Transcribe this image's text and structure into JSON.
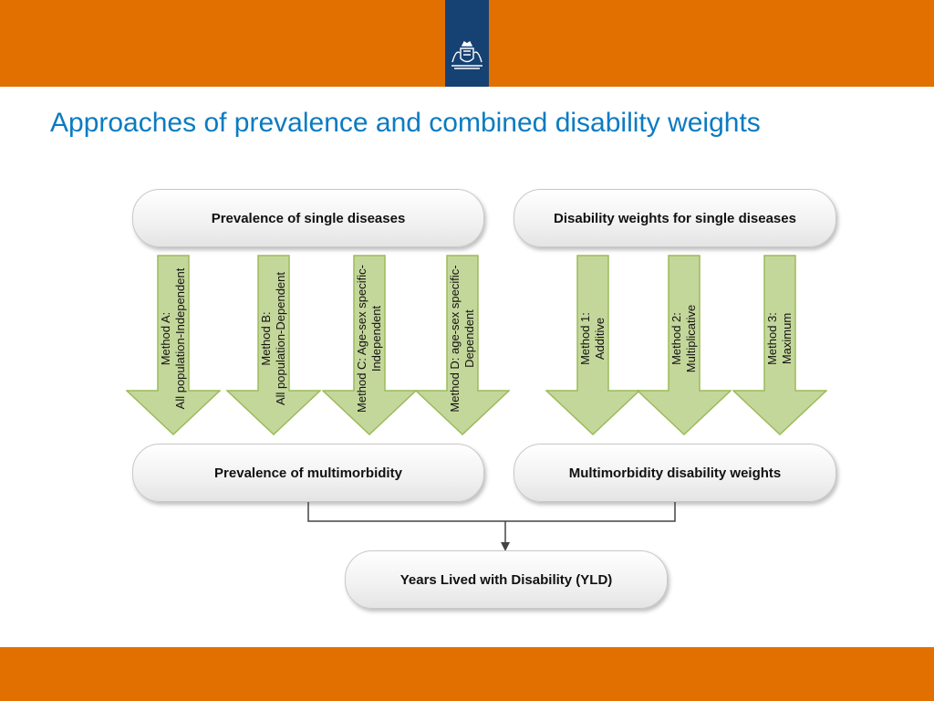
{
  "header": {
    "logo_icon": "coat-of-arms-icon",
    "colors": {
      "bar": "#e17000",
      "logo_block": "#154273",
      "title": "#0b7bc1",
      "arrow_fill": "#c4d79b",
      "arrow_stroke": "#9bbb59"
    }
  },
  "title": "Approaches of prevalence and combined disability weights",
  "boxes": {
    "prevalence_single": "Prevalence of single diseases",
    "weights_single": "Disability weights for single diseases",
    "prevalence_multi": "Prevalence of multimorbidity",
    "weights_multi": "Multimorbidity disability weights",
    "yld": "Years Lived with Disability (YLD)"
  },
  "methods": {
    "a": {
      "line1": "Method A:",
      "line2": "All population-Independent"
    },
    "b": {
      "line1": "Method B:",
      "line2": "All population-Dependent"
    },
    "c": {
      "line1": "Method C: Age-sex specific-",
      "line2": "Independent"
    },
    "d": {
      "line1": "Method D: age-sex specific-",
      "line2": "Dependent"
    },
    "m1": {
      "line1": "Method 1:",
      "line2": "Additive"
    },
    "m2": {
      "line1": "Method 2:",
      "line2": "Multiplicative"
    },
    "m3": {
      "line1": "Method 3:",
      "line2": "Maximum"
    }
  }
}
